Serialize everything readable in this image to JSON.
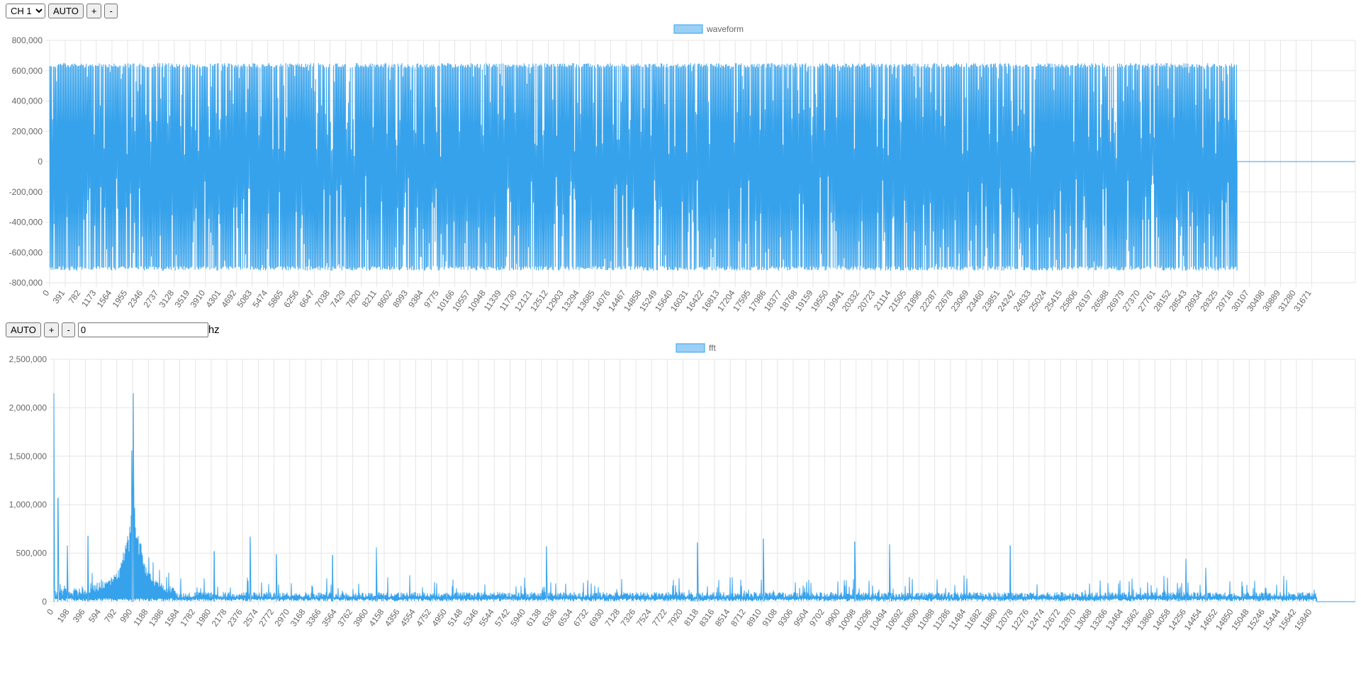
{
  "controls_top": {
    "channel_select": {
      "selected": "CH 1",
      "options": [
        "CH 1"
      ]
    },
    "auto_label": "AUTO",
    "plus_label": "+",
    "minus_label": "-"
  },
  "controls_bottom": {
    "auto_label": "AUTO",
    "plus_label": "+",
    "minus_label": "-",
    "freq_value": "0",
    "freq_unit": "hz"
  },
  "colors": {
    "series": "#36a2eb",
    "series_fill": "#9ad0f5",
    "grid": "#e5e5e5",
    "axis_text": "#666666"
  },
  "chart_data": [
    {
      "type": "line",
      "legend": "waveform",
      "legend_position": "top-center",
      "grid": true,
      "ylim": [
        -800000,
        800000
      ],
      "y_ticks": [
        800000,
        600000,
        400000,
        200000,
        0,
        -200000,
        -400000,
        -600000,
        -800000
      ],
      "y_tick_labels": [
        "800,000",
        "600,000",
        "400,000",
        "200,000",
        "0",
        "-200,000",
        "-400,000",
        "-600,000",
        "-800,000"
      ],
      "x_range": [
        0,
        32767
      ],
      "x_tick_labels": [
        "0",
        "391",
        "782",
        "1173",
        "1564",
        "1955",
        "2346",
        "2737",
        "3128",
        "3519",
        "3910",
        "4301",
        "4692",
        "5083",
        "5474",
        "5865",
        "6256",
        "6647",
        "7038",
        "7429",
        "7820",
        "8211",
        "8602",
        "8993",
        "9384",
        "9775",
        "10166",
        "10557",
        "10948",
        "11339",
        "11730",
        "12121",
        "12512",
        "12903",
        "13294",
        "13685",
        "14076",
        "14467",
        "14858",
        "15249",
        "15640",
        "16031",
        "16422",
        "16813",
        "17204",
        "17595",
        "17986",
        "18377",
        "18768",
        "19159",
        "19550",
        "19941",
        "20332",
        "20723",
        "21114",
        "21505",
        "21896",
        "22287",
        "22678",
        "23069",
        "23460",
        "23851",
        "24242",
        "24633",
        "25024",
        "25415",
        "25806",
        "26197",
        "26588",
        "26979",
        "27370",
        "27761",
        "28152",
        "28543",
        "28934",
        "29325",
        "29716",
        "30107",
        "30498",
        "30889",
        "31280",
        "31671"
      ],
      "x_tick_step": 391,
      "signal_end_x": 29800,
      "upper_envelope": 650000,
      "lower_envelope": -720000,
      "tail_value": 0
    },
    {
      "type": "line",
      "legend": "fft",
      "legend_position": "top-center",
      "grid": true,
      "ylim": [
        0,
        2500000
      ],
      "y_ticks": [
        2500000,
        2000000,
        1500000,
        1000000,
        500000,
        0
      ],
      "y_tick_labels": [
        "2,500,000",
        "2,000,000",
        "1,500,000",
        "1,000,000",
        "500,000",
        "0"
      ],
      "x_range": [
        0,
        16383
      ],
      "x_tick_labels": [
        "0",
        "198",
        "396",
        "594",
        "792",
        "990",
        "1188",
        "1386",
        "1584",
        "1782",
        "1980",
        "2178",
        "2376",
        "2574",
        "2772",
        "2970",
        "3168",
        "3366",
        "3564",
        "3762",
        "3960",
        "4158",
        "4356",
        "4554",
        "4752",
        "4950",
        "5148",
        "5346",
        "5544",
        "5742",
        "5940",
        "6138",
        "6336",
        "6534",
        "6732",
        "6930",
        "7128",
        "7326",
        "7524",
        "7722",
        "7920",
        "8118",
        "8316",
        "8514",
        "8712",
        "8910",
        "9108",
        "9306",
        "9504",
        "9702",
        "9900",
        "10098",
        "10296",
        "10494",
        "10692",
        "10890",
        "11088",
        "11286",
        "11484",
        "11682",
        "11880",
        "12078",
        "12276",
        "12474",
        "12672",
        "12870",
        "13068",
        "13266",
        "13464",
        "13662",
        "13860",
        "14058",
        "14256",
        "14454",
        "14652",
        "14850",
        "15048",
        "15246",
        "15444",
        "15642",
        "15840"
      ],
      "x_tick_step": 198,
      "signal_end_x": 15900,
      "peaks": [
        {
          "x": 0,
          "y": 2150000
        },
        {
          "x": 50,
          "y": 1070000
        },
        {
          "x": 1000,
          "y": 2150000
        },
        {
          "x": 980,
          "y": 1560000
        },
        {
          "x": 170,
          "y": 580000
        },
        {
          "x": 430,
          "y": 680000
        },
        {
          "x": 2020,
          "y": 520000
        },
        {
          "x": 2470,
          "y": 670000
        },
        {
          "x": 2800,
          "y": 490000
        },
        {
          "x": 3510,
          "y": 480000
        },
        {
          "x": 4060,
          "y": 560000
        },
        {
          "x": 6200,
          "y": 570000
        },
        {
          "x": 8100,
          "y": 610000
        },
        {
          "x": 8930,
          "y": 650000
        },
        {
          "x": 10080,
          "y": 620000
        },
        {
          "x": 10520,
          "y": 590000
        },
        {
          "x": 12040,
          "y": 580000
        },
        {
          "x": 14250,
          "y": 440000
        },
        {
          "x": 14500,
          "y": 350000
        }
      ]
    }
  ]
}
